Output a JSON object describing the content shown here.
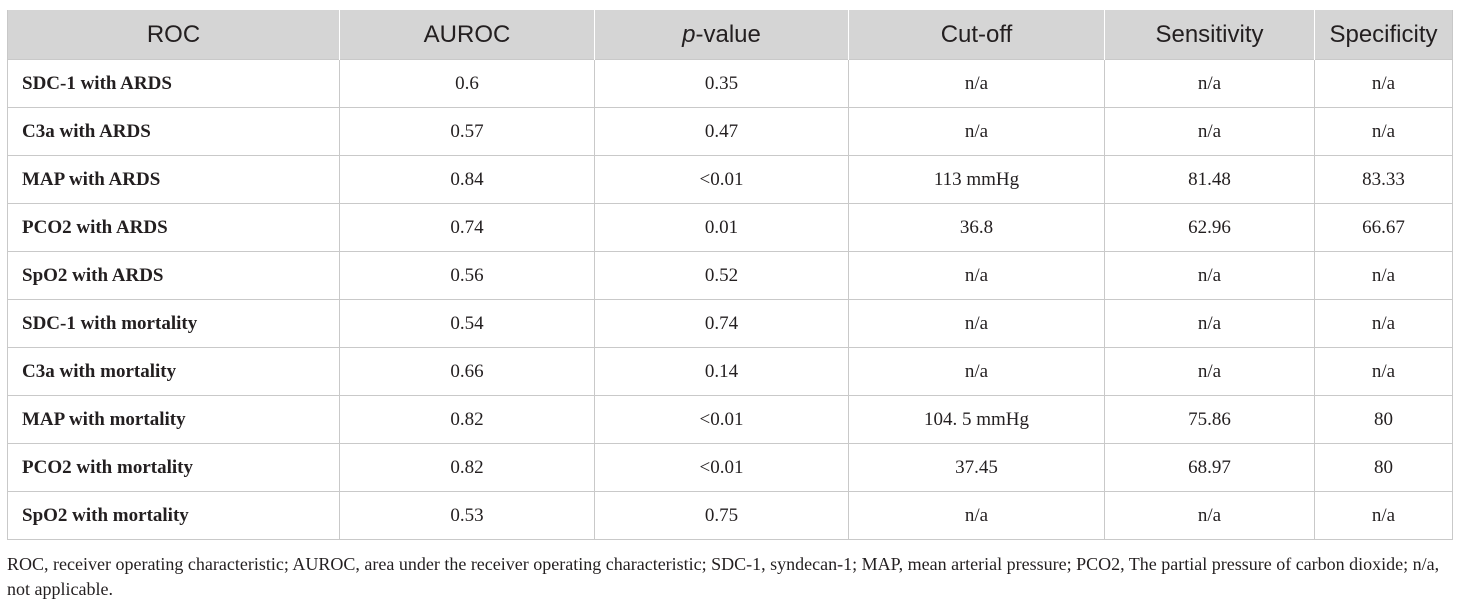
{
  "table": {
    "headers": {
      "roc": "ROC",
      "auroc": "AUROC",
      "pvalue_italic": "p",
      "pvalue_rest": "-value",
      "cutoff": "Cut-off",
      "sensitivity": "Sensitivity",
      "specificity": "Specificity"
    },
    "rows": [
      {
        "roc": "SDC-1 with ARDS",
        "auroc": "0.6",
        "pvalue": "0.35",
        "cutoff": "n/a",
        "sensitivity": "n/a",
        "specificity": "n/a"
      },
      {
        "roc": "C3a with ARDS",
        "auroc": "0.57",
        "pvalue": "0.47",
        "cutoff": "n/a",
        "sensitivity": "n/a",
        "specificity": "n/a"
      },
      {
        "roc": "MAP with ARDS",
        "auroc": "0.84",
        "pvalue": "<0.01",
        "cutoff": "113 mmHg",
        "sensitivity": "81.48",
        "specificity": "83.33"
      },
      {
        "roc": "PCO2 with ARDS",
        "auroc": "0.74",
        "pvalue": "0.01",
        "cutoff": "36.8",
        "sensitivity": "62.96",
        "specificity": "66.67"
      },
      {
        "roc": "SpO2 with ARDS",
        "auroc": "0.56",
        "pvalue": "0.52",
        "cutoff": "n/a",
        "sensitivity": "n/a",
        "specificity": "n/a"
      },
      {
        "roc": "SDC-1 with mortality",
        "auroc": "0.54",
        "pvalue": "0.74",
        "cutoff": "n/a",
        "sensitivity": "n/a",
        "specificity": "n/a"
      },
      {
        "roc": "C3a with mortality",
        "auroc": "0.66",
        "pvalue": "0.14",
        "cutoff": "n/a",
        "sensitivity": "n/a",
        "specificity": "n/a"
      },
      {
        "roc": "MAP with mortality",
        "auroc": "0.82",
        "pvalue": "<0.01",
        "cutoff": "104. 5 mmHg",
        "sensitivity": "75.86",
        "specificity": "80"
      },
      {
        "roc": "PCO2 with mortality",
        "auroc": "0.82",
        "pvalue": "<0.01",
        "cutoff": "37.45",
        "sensitivity": "68.97",
        "specificity": "80"
      },
      {
        "roc": "SpO2 with mortality",
        "auroc": "0.53",
        "pvalue": "0.75",
        "cutoff": "n/a",
        "sensitivity": "n/a",
        "specificity": "n/a"
      }
    ]
  },
  "footnote": "ROC, receiver operating characteristic; AUROC, area under the receiver operating characteristic; SDC-1, syndecan-1; MAP, mean arterial pressure; PCO2, The partial pressure of carbon dioxide; n/a, not applicable.",
  "colors": {
    "header_background": "#d5d5d5",
    "border": "#c9c9c9",
    "text": "#231f20"
  }
}
